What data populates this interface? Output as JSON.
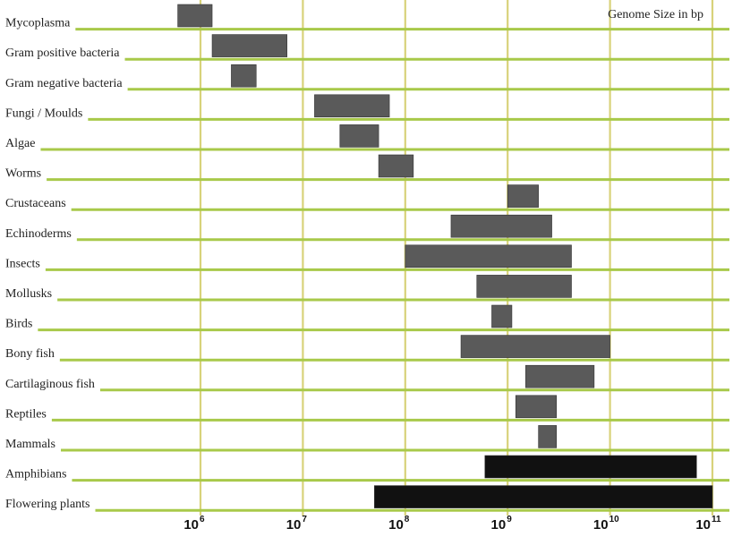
{
  "chart_data": {
    "type": "bar",
    "subtype": "floating-range-bar",
    "title": "Genome Size in bp",
    "xscale": "log",
    "xlim": [
      100000,
      100000000000
    ],
    "xticks": [
      1000000,
      10000000,
      100000000,
      1000000000,
      10000000000,
      100000000000
    ],
    "xtick_labels": [
      {
        "base": "10",
        "exp": "6"
      },
      {
        "base": "10",
        "exp": "7"
      },
      {
        "base": "10",
        "exp": "8"
      },
      {
        "base": "10",
        "exp": "9"
      },
      {
        "base": "10",
        "exp": "10"
      },
      {
        "base": "10",
        "exp": "11"
      }
    ],
    "grid": "vertical",
    "colors": {
      "gridline": "#d8d27a",
      "rowline": "#a8c94a",
      "bar": "#5a5a5a",
      "bar_dark": "#111111"
    },
    "categories": [
      "Mycoplasma",
      "Gram positive bacteria",
      "Gram negative bacteria",
      "Fungi / Moulds",
      "Algae",
      "Worms",
      "Crustaceans",
      "Echinoderms",
      "Insects",
      "Mollusks",
      "Birds",
      "Bony fish",
      "Cartilaginous fish",
      "Reptiles",
      "Mammals",
      "Amphibians",
      "Flowering plants"
    ],
    "ranges": [
      [
        600000,
        1300000
      ],
      [
        1300000,
        7000000
      ],
      [
        2000000,
        3500000
      ],
      [
        13000000,
        70000000
      ],
      [
        23000000,
        55000000
      ],
      [
        55000000,
        120000000
      ],
      [
        1000000000,
        2000000000
      ],
      [
        280000000,
        2700000000
      ],
      [
        100000000,
        4200000000
      ],
      [
        500000000,
        4200000000
      ],
      [
        700000000,
        1100000000
      ],
      [
        350000000,
        10000000000
      ],
      [
        1500000000,
        7000000000
      ],
      [
        1200000000,
        3000000000
      ],
      [
        2000000000,
        3000000000
      ],
      [
        600000000,
        70000000000
      ],
      [
        50000000,
        100000000000
      ]
    ],
    "dark": [
      false,
      false,
      false,
      false,
      false,
      false,
      false,
      false,
      false,
      false,
      false,
      false,
      false,
      false,
      false,
      true,
      true
    ]
  }
}
